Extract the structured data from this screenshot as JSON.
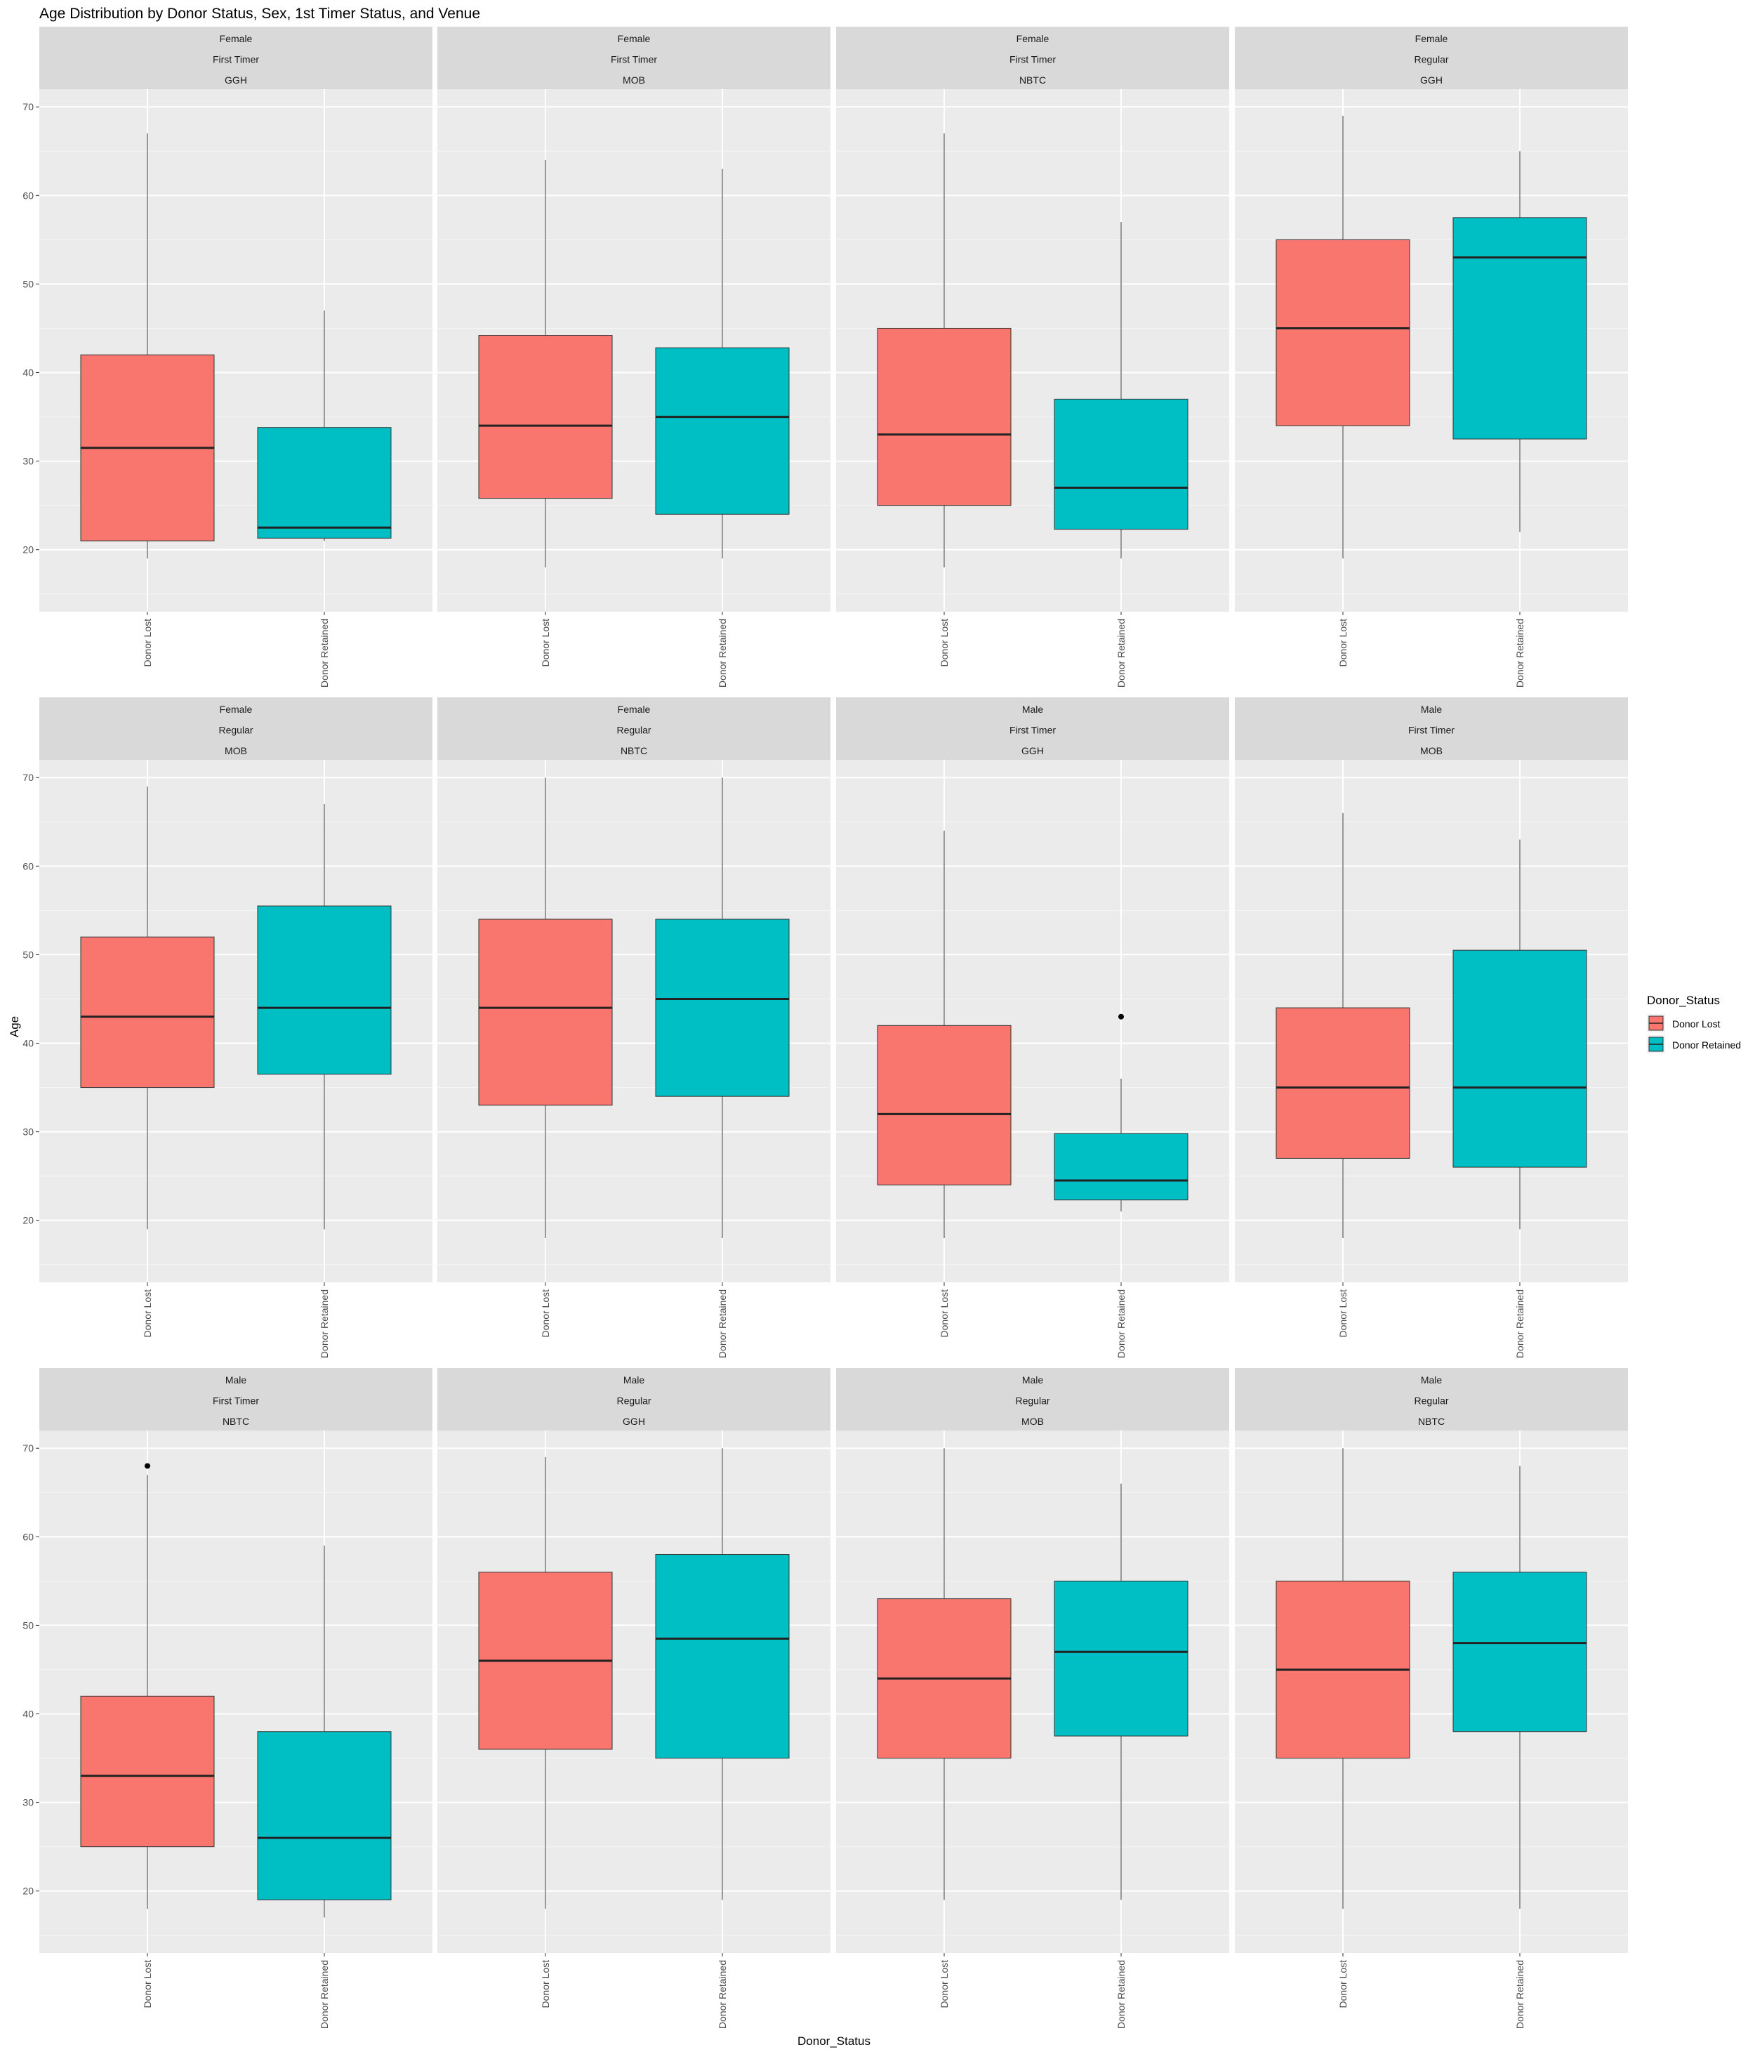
{
  "chart_data": {
    "type": "boxplot",
    "title": "Age Distribution by Donor Status, Sex, 1st Timer Status, and Venue",
    "xlabel": "Donor_Status",
    "ylabel": "Age",
    "ylim": [
      13,
      72
    ],
    "y_ticks": [
      20,
      30,
      40,
      50,
      60,
      70
    ],
    "categories": [
      "Donor Lost",
      "Donor Retained"
    ],
    "grid": true,
    "legend": {
      "title": "Donor_Status",
      "position": "right",
      "items": [
        {
          "label": "Donor Lost",
          "color": "#F8766D"
        },
        {
          "label": "Donor Retained",
          "color": "#00BFC4"
        }
      ]
    },
    "colors": {
      "Donor Lost": "#F8766D",
      "Donor Retained": "#00BFC4"
    },
    "facets": [
      {
        "strip": [
          "Female",
          "First Timer",
          "GGH"
        ],
        "boxes": [
          {
            "category": "Donor Lost",
            "min": 19,
            "q1": 21,
            "median": 31.5,
            "q3": 42,
            "max": 67,
            "outliers": []
          },
          {
            "category": "Donor Retained",
            "min": 21,
            "q1": 21.3,
            "median": 22.5,
            "q3": 33.8,
            "max": 47,
            "outliers": []
          }
        ]
      },
      {
        "strip": [
          "Female",
          "First Timer",
          "MOB"
        ],
        "boxes": [
          {
            "category": "Donor Lost",
            "min": 18,
            "q1": 25.8,
            "median": 34,
            "q3": 44.2,
            "max": 64,
            "outliers": []
          },
          {
            "category": "Donor Retained",
            "min": 19,
            "q1": 24,
            "median": 35,
            "q3": 42.8,
            "max": 63,
            "outliers": []
          }
        ]
      },
      {
        "strip": [
          "Female",
          "First Timer",
          "NBTC"
        ],
        "boxes": [
          {
            "category": "Donor Lost",
            "min": 18,
            "q1": 25,
            "median": 33,
            "q3": 45,
            "max": 67,
            "outliers": []
          },
          {
            "category": "Donor Retained",
            "min": 19,
            "q1": 22.3,
            "median": 27,
            "q3": 37,
            "max": 57,
            "outliers": []
          }
        ]
      },
      {
        "strip": [
          "Female",
          "Regular",
          "GGH"
        ],
        "boxes": [
          {
            "category": "Donor Lost",
            "min": 19,
            "q1": 34,
            "median": 45,
            "q3": 55,
            "max": 69,
            "outliers": []
          },
          {
            "category": "Donor Retained",
            "min": 22,
            "q1": 32.5,
            "median": 53,
            "q3": 57.5,
            "max": 65,
            "outliers": []
          }
        ]
      },
      {
        "strip": [
          "Female",
          "Regular",
          "MOB"
        ],
        "boxes": [
          {
            "category": "Donor Lost",
            "min": 19,
            "q1": 35,
            "median": 43,
            "q3": 52,
            "max": 69,
            "outliers": []
          },
          {
            "category": "Donor Retained",
            "min": 19,
            "q1": 36.5,
            "median": 44,
            "q3": 55.5,
            "max": 67,
            "outliers": []
          }
        ]
      },
      {
        "strip": [
          "Female",
          "Regular",
          "NBTC"
        ],
        "boxes": [
          {
            "category": "Donor Lost",
            "min": 18,
            "q1": 33,
            "median": 44,
            "q3": 54,
            "max": 70,
            "outliers": []
          },
          {
            "category": "Donor Retained",
            "min": 18,
            "q1": 34,
            "median": 45,
            "q3": 54,
            "max": 70,
            "outliers": []
          }
        ]
      },
      {
        "strip": [
          "Male",
          "First Timer",
          "GGH"
        ],
        "boxes": [
          {
            "category": "Donor Lost",
            "min": 18,
            "q1": 24,
            "median": 32,
            "q3": 42,
            "max": 64,
            "outliers": []
          },
          {
            "category": "Donor Retained",
            "min": 21,
            "q1": 22.3,
            "median": 24.5,
            "q3": 29.8,
            "max": 36,
            "outliers": [
              43
            ]
          }
        ]
      },
      {
        "strip": [
          "Male",
          "First Timer",
          "MOB"
        ],
        "boxes": [
          {
            "category": "Donor Lost",
            "min": 18,
            "q1": 27,
            "median": 35,
            "q3": 44,
            "max": 66,
            "outliers": []
          },
          {
            "category": "Donor Retained",
            "min": 19,
            "q1": 26,
            "median": 35,
            "q3": 50.5,
            "max": 63,
            "outliers": []
          }
        ]
      },
      {
        "strip": [
          "Male",
          "First Timer",
          "NBTC"
        ],
        "boxes": [
          {
            "category": "Donor Lost",
            "min": 18,
            "q1": 25,
            "median": 33,
            "q3": 42,
            "max": 67,
            "outliers": [
              68
            ]
          },
          {
            "category": "Donor Retained",
            "min": 17,
            "q1": 19,
            "median": 26,
            "q3": 38,
            "max": 59,
            "outliers": []
          }
        ]
      },
      {
        "strip": [
          "Male",
          "Regular",
          "GGH"
        ],
        "boxes": [
          {
            "category": "Donor Lost",
            "min": 18,
            "q1": 36,
            "median": 46,
            "q3": 56,
            "max": 69,
            "outliers": []
          },
          {
            "category": "Donor Retained",
            "min": 19,
            "q1": 35,
            "median": 48.5,
            "q3": 58,
            "max": 70,
            "outliers": []
          }
        ]
      },
      {
        "strip": [
          "Male",
          "Regular",
          "MOB"
        ],
        "boxes": [
          {
            "category": "Donor Lost",
            "min": 19,
            "q1": 35,
            "median": 44,
            "q3": 53,
            "max": 70,
            "outliers": []
          },
          {
            "category": "Donor Retained",
            "min": 19,
            "q1": 37.5,
            "median": 47,
            "q3": 55,
            "max": 66,
            "outliers": []
          }
        ]
      },
      {
        "strip": [
          "Male",
          "Regular",
          "NBTC"
        ],
        "boxes": [
          {
            "category": "Donor Lost",
            "min": 18,
            "q1": 35,
            "median": 45,
            "q3": 55,
            "max": 70,
            "outliers": []
          },
          {
            "category": "Donor Retained",
            "min": 18,
            "q1": 38,
            "median": 48,
            "q3": 56,
            "max": 68,
            "outliers": []
          }
        ]
      }
    ]
  }
}
